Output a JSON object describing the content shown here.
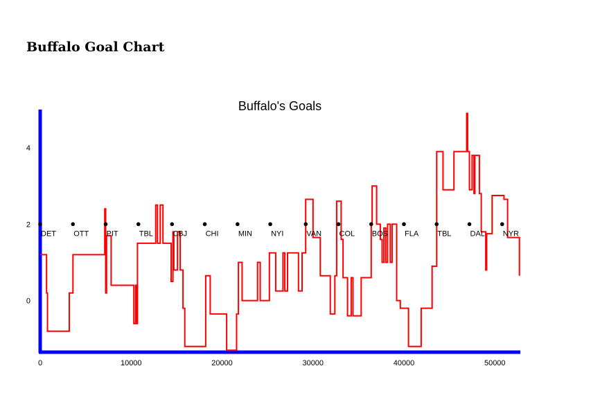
{
  "page_title": "Buffalo Goal Chart",
  "chart_data": {
    "type": "line",
    "title": "Buffalo's Goals",
    "xlabel": "",
    "ylabel": "",
    "xlim": [
      0,
      52800
    ],
    "ylim": [
      -1.35,
      5.0
    ],
    "x_ticks": [
      0,
      10000,
      20000,
      30000,
      40000,
      50000
    ],
    "y_ticks": [
      0,
      2,
      4
    ],
    "grid": false,
    "colors": {
      "line": "#ff0000",
      "axis": "#0000ff",
      "markers": "#000000"
    },
    "series": [
      {
        "step": "post",
        "points": [
          [
            0,
            1.2
          ],
          [
            700,
            0.2
          ],
          [
            800,
            -0.8
          ],
          [
            3200,
            0.2
          ],
          [
            3600,
            1.2
          ],
          [
            7100,
            2.4
          ],
          [
            7200,
            0.2
          ],
          [
            7300,
            1.7
          ],
          [
            7800,
            0.4
          ],
          [
            10300,
            -0.6
          ],
          [
            10500,
            0.4
          ],
          [
            10600,
            -0.6
          ],
          [
            10700,
            1.5
          ],
          [
            12700,
            2.5
          ],
          [
            12900,
            1.5
          ],
          [
            13200,
            2.5
          ],
          [
            13500,
            1.5
          ],
          [
            14400,
            0.5
          ],
          [
            14600,
            1.8
          ],
          [
            14700,
            0.8
          ],
          [
            15100,
            1.8
          ],
          [
            15400,
            0.8
          ],
          [
            15700,
            -0.2
          ],
          [
            15900,
            -1.2
          ],
          [
            18200,
            0.65
          ],
          [
            18700,
            -0.35
          ],
          [
            20500,
            -1.3
          ],
          [
            21400,
            -1.3
          ],
          [
            21600,
            -0.35
          ],
          [
            21800,
            1.0
          ],
          [
            22200,
            0.0
          ],
          [
            23900,
            1.0
          ],
          [
            24200,
            0.0
          ],
          [
            25200,
            1.25
          ],
          [
            25900,
            0.25
          ],
          [
            26700,
            1.25
          ],
          [
            26900,
            0.25
          ],
          [
            27200,
            1.25
          ],
          [
            28400,
            0.25
          ],
          [
            28800,
            1.25
          ],
          [
            29200,
            2.65
          ],
          [
            30000,
            1.65
          ],
          [
            30800,
            0.65
          ],
          [
            31900,
            -0.35
          ],
          [
            32400,
            0.65
          ],
          [
            32600,
            2.6
          ],
          [
            33100,
            1.6
          ],
          [
            33300,
            0.6
          ],
          [
            33800,
            -0.4
          ],
          [
            34200,
            0.6
          ],
          [
            34400,
            -0.4
          ],
          [
            35300,
            0.6
          ],
          [
            36400,
            2.0
          ],
          [
            36500,
            3.0
          ],
          [
            37000,
            2.0
          ],
          [
            37400,
            1.6
          ],
          [
            37600,
            1.0
          ],
          [
            37800,
            1.9
          ],
          [
            38000,
            1.0
          ],
          [
            38200,
            2.0
          ],
          [
            38500,
            1.0
          ],
          [
            38700,
            2.0
          ],
          [
            39200,
            0.0
          ],
          [
            39600,
            -0.2
          ],
          [
            40500,
            -1.2
          ],
          [
            41900,
            -0.2
          ],
          [
            43100,
            0.9
          ],
          [
            43600,
            3.9
          ],
          [
            44300,
            2.9
          ],
          [
            45500,
            3.9
          ],
          [
            46900,
            4.9
          ],
          [
            47000,
            3.9
          ],
          [
            47200,
            2.9
          ],
          [
            47500,
            3.8
          ],
          [
            47700,
            2.8
          ],
          [
            47800,
            3.8
          ],
          [
            48300,
            2.8
          ],
          [
            48500,
            1.8
          ],
          [
            49000,
            0.8
          ],
          [
            49100,
            1.75
          ],
          [
            49700,
            2.75
          ],
          [
            51000,
            2.65
          ],
          [
            51400,
            1.65
          ],
          [
            52700,
            0.65
          ]
        ]
      }
    ],
    "markers": [
      {
        "team": "DET",
        "x": 0,
        "y": 2
      },
      {
        "team": "OTT",
        "x": 3600,
        "y": 2
      },
      {
        "team": "PIT",
        "x": 7200,
        "y": 2
      },
      {
        "team": "TBL",
        "x": 10800,
        "y": 2
      },
      {
        "team": "CBJ",
        "x": 14500,
        "y": 2
      },
      {
        "team": "CHI",
        "x": 18100,
        "y": 2
      },
      {
        "team": "MIN",
        "x": 21700,
        "y": 2
      },
      {
        "team": "NYI",
        "x": 25300,
        "y": 2
      },
      {
        "team": "VAN",
        "x": 29200,
        "y": 2
      },
      {
        "team": "COL",
        "x": 32800,
        "y": 2
      },
      {
        "team": "BOS",
        "x": 36400,
        "y": 2
      },
      {
        "team": "FLA",
        "x": 40000,
        "y": 2
      },
      {
        "team": "TBL",
        "x": 43600,
        "y": 2
      },
      {
        "team": "DAL",
        "x": 47200,
        "y": 2
      },
      {
        "team": "NYR",
        "x": 50800,
        "y": 2
      }
    ]
  }
}
